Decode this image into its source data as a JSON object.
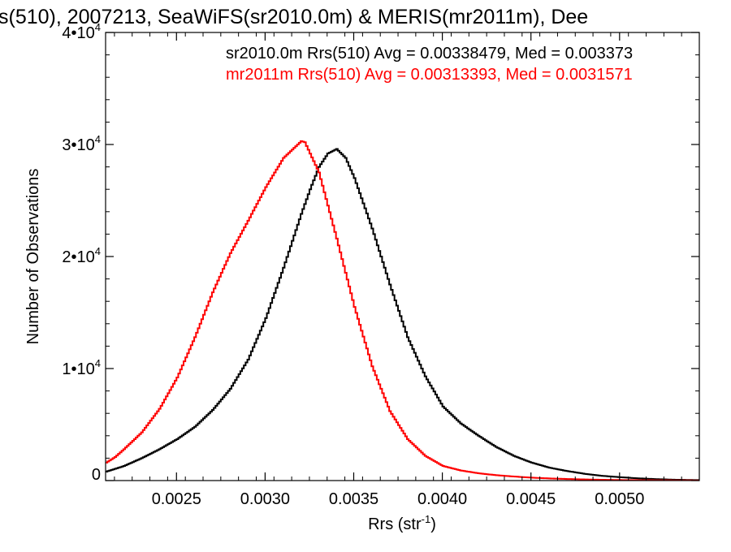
{
  "chart_data": {
    "type": "line",
    "title": "s(510), 2007213, SeaWiFS(sr2010.0m) & MERIS(mr2011m), Dee",
    "xlabel": "Rrs (str",
    "xlabel_sup": "-1",
    "xlabel_close": ")",
    "ylabel": "Number of Observations",
    "xlim": [
      0.0021,
      0.00545
    ],
    "ylim": [
      0,
      40000
    ],
    "x_ticks": [
      {
        "value": 0.0025,
        "label": "0.0025"
      },
      {
        "value": 0.003,
        "label": "0.0030"
      },
      {
        "value": 0.0035,
        "label": "0.0035"
      },
      {
        "value": 0.004,
        "label": "0.0040"
      },
      {
        "value": 0.0045,
        "label": "0.0045"
      },
      {
        "value": 0.005,
        "label": "0.0050"
      }
    ],
    "y_ticks": [
      {
        "value": 0,
        "mant": "0",
        "exp": ""
      },
      {
        "value": 10000,
        "mant": "1•10",
        "exp": "4"
      },
      {
        "value": 20000,
        "mant": "2•10",
        "exp": "4"
      },
      {
        "value": 30000,
        "mant": "3•10",
        "exp": "4"
      },
      {
        "value": 40000,
        "mant": "4•10",
        "exp": "4"
      }
    ],
    "annotations": [
      "sr2010.0m Rrs(510) Avg = 0.00338479, Med = 0.003373",
      "mr2011m Rrs(510) Avg = 0.00313393, Med = 0.0031571"
    ],
    "series": [
      {
        "color": "#000000",
        "x": [
          0.0021,
          0.0022,
          0.0023,
          0.0024,
          0.0025,
          0.0026,
          0.0027,
          0.0028,
          0.0029,
          0.003,
          0.0031,
          0.0032,
          0.00325,
          0.0033,
          0.00335,
          0.0034,
          0.00345,
          0.0035,
          0.0036,
          0.0037,
          0.0038,
          0.0039,
          0.004,
          0.0041,
          0.0042,
          0.0043,
          0.0044,
          0.0045,
          0.0046,
          0.0047,
          0.0048,
          0.0049,
          0.005,
          0.0051,
          0.0052,
          0.0053,
          0.0054,
          0.00545
        ],
        "y": [
          800,
          1300,
          2000,
          2800,
          3700,
          4800,
          6300,
          8200,
          10800,
          14500,
          19000,
          23800,
          26000,
          28000,
          29200,
          29600,
          28800,
          27000,
          22500,
          17500,
          12800,
          9300,
          6600,
          5100,
          4000,
          3000,
          2200,
          1600,
          1150,
          850,
          600,
          420,
          300,
          200,
          130,
          80,
          50,
          40
        ]
      },
      {
        "color": "#ff0000",
        "x": [
          0.0021,
          0.00215,
          0.0022,
          0.0023,
          0.0024,
          0.0025,
          0.0026,
          0.0027,
          0.0028,
          0.0029,
          0.003,
          0.0031,
          0.0032,
          0.00322,
          0.0033,
          0.0034,
          0.0035,
          0.0036,
          0.0037,
          0.0038,
          0.0039,
          0.004,
          0.0041,
          0.0042,
          0.0043,
          0.0044,
          0.0045,
          0.0046,
          0.0047,
          0.0048,
          0.0049,
          0.005,
          0.0052,
          0.00545
        ],
        "y": [
          1600,
          2100,
          2800,
          4300,
          6400,
          9200,
          12800,
          16800,
          20300,
          23200,
          26200,
          28800,
          30300,
          30200,
          27500,
          21600,
          15500,
          10200,
          6200,
          3700,
          2200,
          1300,
          900,
          650,
          480,
          360,
          260,
          190,
          140,
          100,
          70,
          50,
          30,
          10
        ]
      }
    ]
  }
}
